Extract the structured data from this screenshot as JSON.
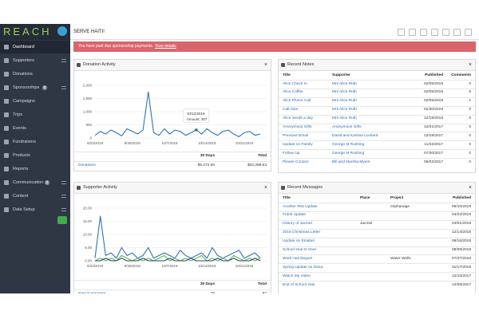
{
  "brand": "REACH",
  "org": "SERVE HAITI!",
  "nav": [
    {
      "label": "Dashboard",
      "active": true
    },
    {
      "label": "Supporters",
      "more": true
    },
    {
      "label": "Donations"
    },
    {
      "label": "Sponsorships",
      "badge": "0",
      "more": true
    },
    {
      "label": "Campaigns"
    },
    {
      "label": "Trips"
    },
    {
      "label": "Events"
    },
    {
      "label": "Fundraisers"
    },
    {
      "label": "Products"
    },
    {
      "label": "Reports"
    },
    {
      "label": "Communication",
      "badge": "3",
      "more": true
    },
    {
      "label": "Content",
      "more": true
    },
    {
      "label": "Data Setup",
      "more": true
    }
  ],
  "alert": {
    "text": "You have past due sponsorship payments.",
    "link": "View details"
  },
  "donation_panel": {
    "title": "Donation Activity",
    "chart": {
      "type": "line",
      "categories": [
        "9/23/2019",
        null,
        null,
        null,
        null,
        null,
        null,
        "9/30/2019",
        null,
        null,
        null,
        null,
        null,
        null,
        "10/7/2019",
        null,
        null,
        null,
        null,
        null,
        null,
        "10/14/2019",
        null,
        null,
        null,
        null,
        null,
        null,
        "10/21/2019",
        null,
        null,
        null
      ],
      "values": [
        100,
        250,
        150,
        300,
        200,
        80,
        350,
        250,
        150,
        300,
        1750,
        200,
        100,
        350,
        150,
        300,
        250,
        100,
        200,
        307,
        150,
        350,
        200,
        100,
        250,
        300,
        150,
        50,
        200,
        250,
        100,
        150
      ],
      "color": "#2f72b8",
      "ylim": [
        0,
        2000
      ],
      "yticks": [
        0,
        500,
        {
          "value": 1000,
          "label": "1,000"
        },
        {
          "value": 1500,
          "label": "1,500"
        },
        {
          "value": 2000,
          "label": "2,000"
        }
      ],
      "grid": true,
      "tooltip": {
        "index": 19,
        "date": "10/12/2019",
        "label": "Amount: 307"
      }
    },
    "table": {
      "header": [
        "30 Days",
        "Total"
      ],
      "rows": [
        [
          "Donations",
          "$5,272.00",
          "$32,288.63"
        ]
      ]
    }
  },
  "supporter_panel": {
    "title": "Supporter Activity",
    "chart": {
      "type": "line",
      "categories": [
        "9/23/2019",
        null,
        null,
        null,
        null,
        null,
        null,
        "9/30/2019",
        null,
        null,
        null,
        null,
        null,
        null,
        "10/7/2019",
        null,
        null,
        null,
        null,
        null,
        null,
        "10/14/2019",
        null,
        null,
        null,
        null,
        null,
        null,
        "10/21/2019",
        null,
        null,
        null
      ],
      "series": [
        {
          "color": "#2f72b8",
          "values": [
            1,
            17,
            2,
            3,
            1,
            5,
            2,
            3,
            1,
            2,
            5,
            1,
            2,
            3,
            2,
            1,
            4,
            2,
            1,
            2,
            3,
            1,
            5,
            2,
            1,
            2,
            3,
            4,
            1,
            2,
            3,
            1
          ]
        },
        {
          "color": "#5cb85c",
          "values": [
            0,
            1,
            0,
            1,
            0,
            2,
            1,
            0,
            1,
            0,
            1,
            0,
            1,
            2,
            0,
            1,
            0,
            1,
            0,
            1,
            2,
            0,
            1,
            0,
            1,
            0,
            2,
            1,
            0,
            1,
            0,
            1
          ]
        },
        {
          "color": "#34495e",
          "values": [
            0,
            0,
            1,
            0,
            0,
            1,
            0,
            0,
            0,
            1,
            0,
            0,
            0,
            0,
            1,
            0,
            0,
            0,
            1,
            0,
            0,
            0,
            0,
            1,
            0,
            0,
            1,
            0,
            0,
            0,
            1,
            0
          ]
        }
      ],
      "ylim": [
        0,
        20
      ],
      "yticks": [
        {
          "value": 0,
          "label": "0.00"
        },
        {
          "value": 5,
          "label": "5.00"
        },
        {
          "value": 10,
          "label": "10.00"
        },
        {
          "value": 15,
          "label": "15.00"
        },
        {
          "value": 20,
          "label": "20.00"
        }
      ],
      "grid": true
    },
    "table": {
      "header": [
        "30 Days",
        "Total"
      ],
      "rows": [
        [
          "New Supporters",
          "29",
          "87"
        ]
      ]
    }
  },
  "notes_panel": {
    "title": "Recent Notes",
    "header": [
      "Title",
      "Supporter",
      "Published",
      "Comments"
    ],
    "rows": [
      [
        "Alice Check In",
        "Mrs Alice Ruth",
        "02/05/2019",
        "0"
      ],
      [
        "Alice Coffee",
        "Mrs Alice Ruth",
        "02/05/2019",
        "0"
      ],
      [
        "Alice Phone Call",
        "Mrs Alice Ruth",
        "02/05/2019",
        "1"
      ],
      [
        "Call Alice",
        "Mrs Alice Ruth",
        "01/30/2019",
        "0"
      ],
      [
        "Alice needs a day",
        "Mrs Alice Ruth",
        "12/19/2018",
        "0"
      ],
      [
        "Anonymous Gifts",
        "Anonymous Gifts",
        "12/21/2017",
        "0"
      ],
      [
        "Previous Email",
        "David and Karissa Lockard",
        "12/18/2017",
        "0"
      ],
      [
        "Update on Family",
        "George M Rushing",
        "11/22/2017",
        "0"
      ],
      [
        "Follow Up",
        "George M Rushing",
        "07/20/2017",
        "0"
      ],
      [
        "Please Contact",
        "Bill and Marsha Myers",
        "06/02/2017",
        "0"
      ]
    ]
  },
  "messages_panel": {
    "title": "Recent Messages",
    "header": [
      "Title",
      "Place",
      "Project",
      "Published"
    ],
    "rows": [
      [
        "Another Test Update",
        null,
        "Orphanage",
        "09/10/2019"
      ],
      [
        "Frank Update",
        null,
        null,
        "04/22/2019"
      ],
      [
        "History of Jacmel",
        "Jacmel",
        null,
        "04/01/2019"
      ],
      [
        "2018 Christmas Letter",
        null,
        null,
        "12/14/2018"
      ],
      [
        "Update on Emabel",
        null,
        null,
        "08/16/2018"
      ],
      [
        "School Year Is Over",
        null,
        null,
        "08/08/2018"
      ],
      [
        "Work Has Begun!",
        null,
        "Water Wells",
        "07/27/2018"
      ],
      [
        "Spring Update on Dana",
        null,
        null,
        "01/17/2018"
      ],
      [
        "Watch My Video",
        null,
        null,
        "12/15/2017"
      ],
      [
        "End of School Year",
        null,
        null,
        "12/08/2017"
      ]
    ]
  }
}
